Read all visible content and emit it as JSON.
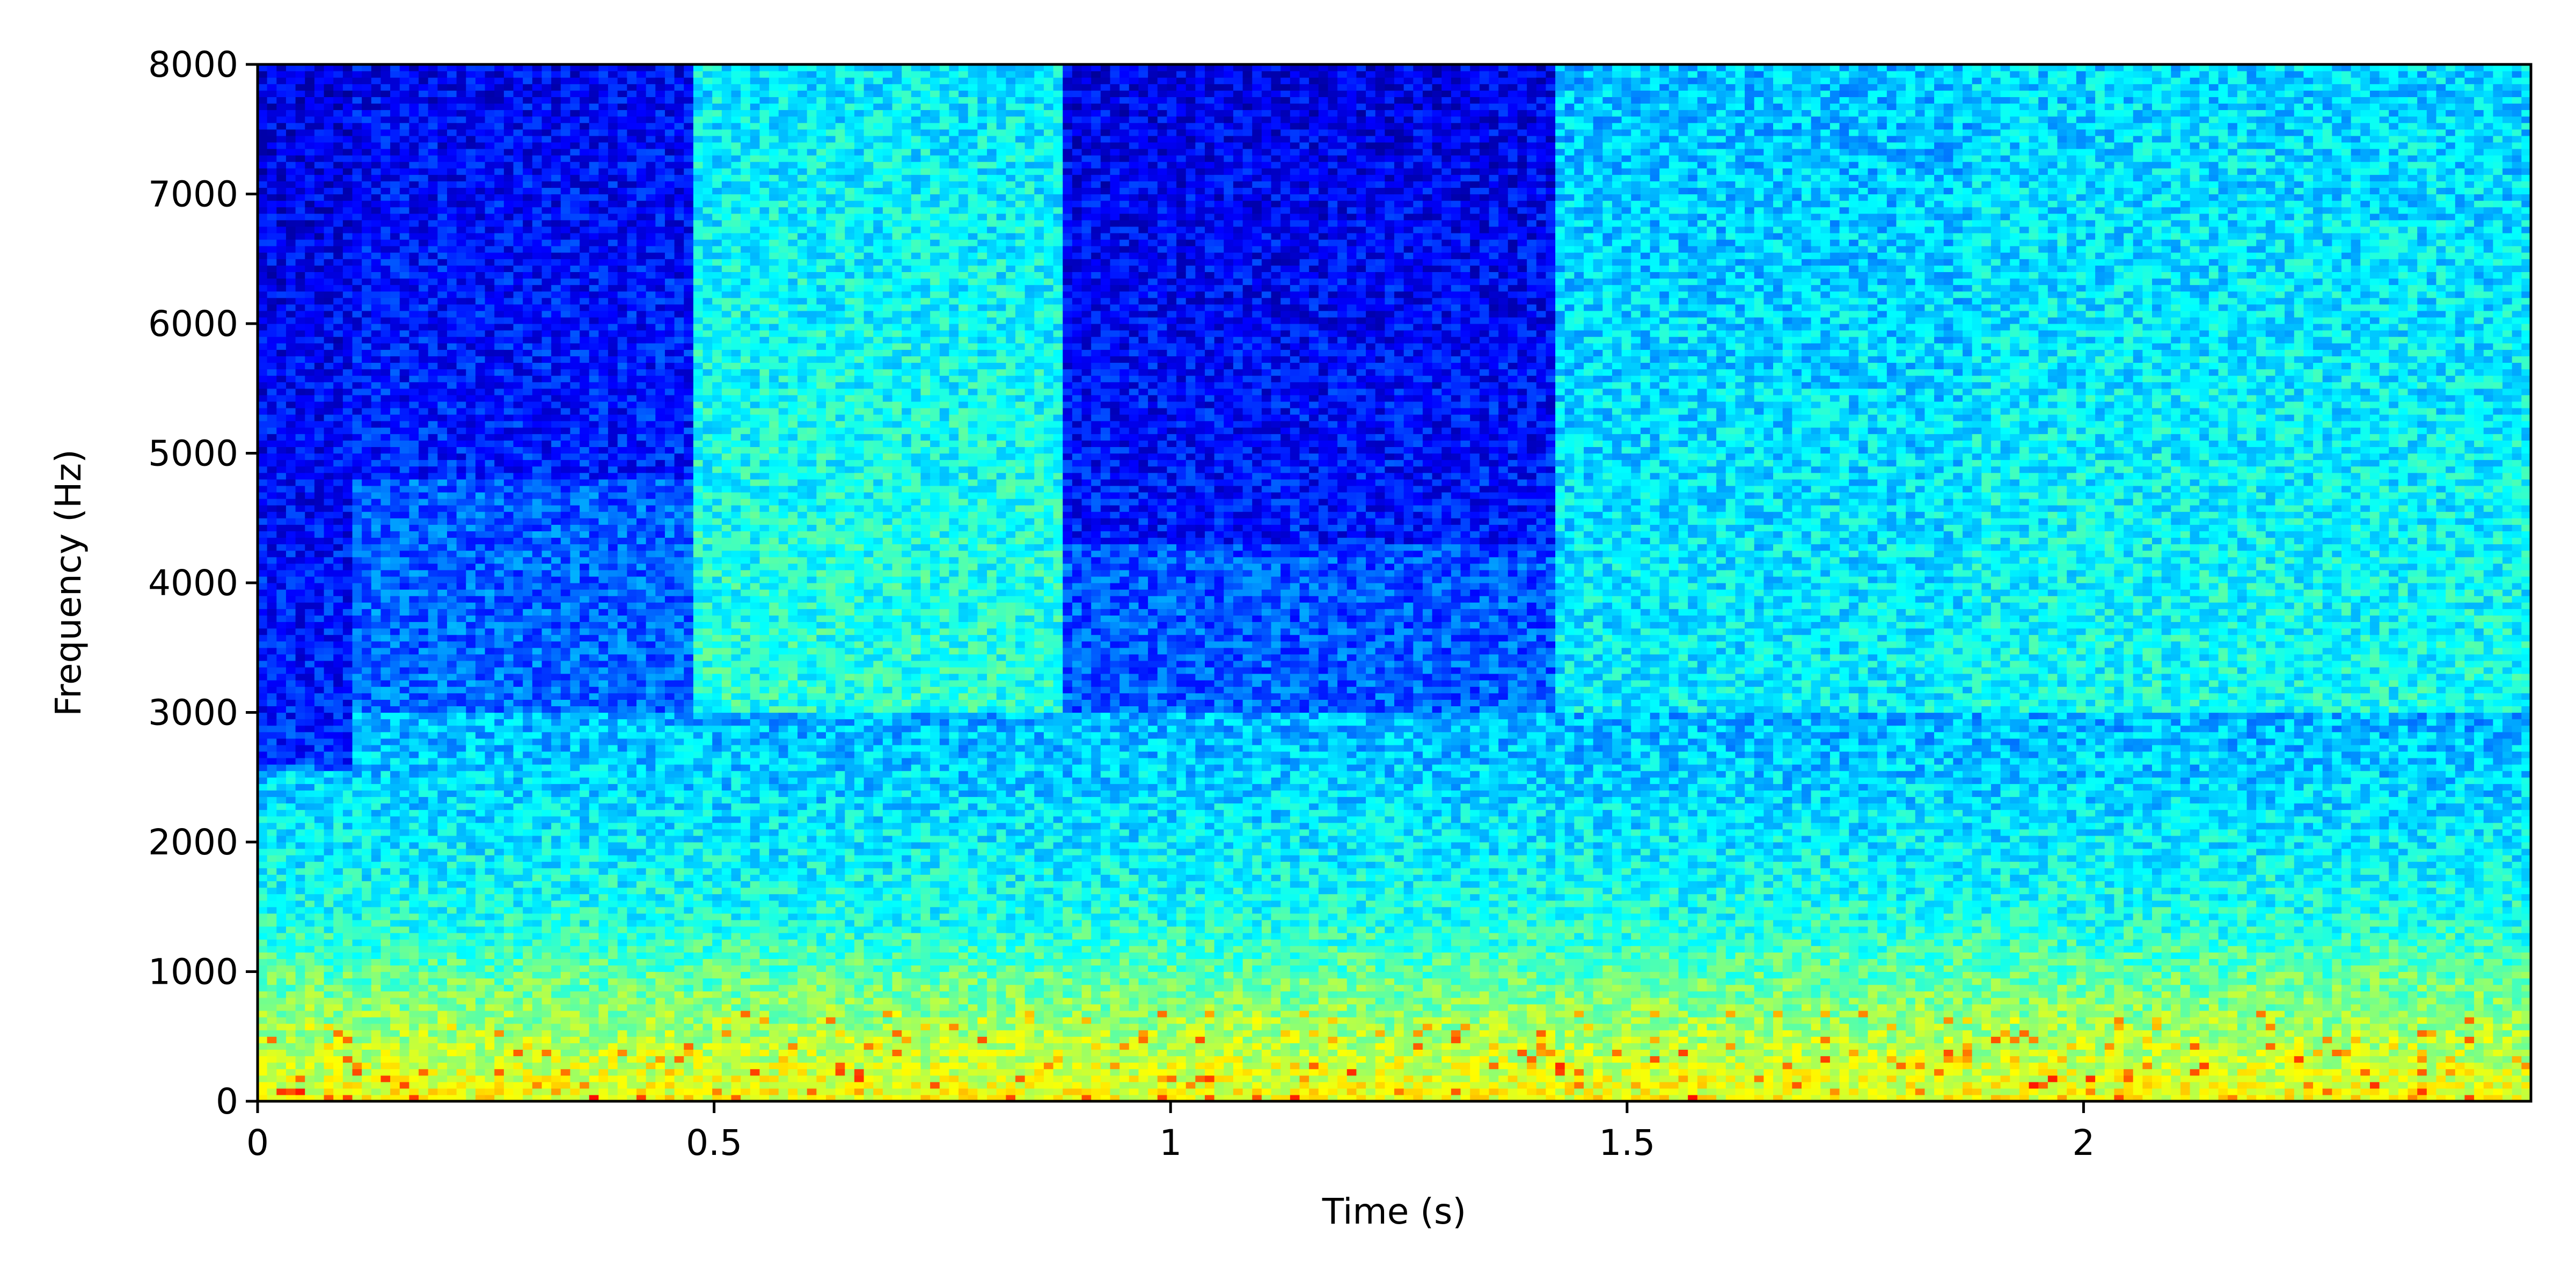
{
  "chart_data": {
    "type": "heatmap",
    "title": "",
    "xlabel": "Time (s)",
    "ylabel": "Frequency (Hz)",
    "xlim": [
      0,
      2.49
    ],
    "ylim": [
      0,
      8000
    ],
    "x_ticks": [
      0,
      0.5,
      1,
      1.5,
      2
    ],
    "x_tick_labels": [
      "0",
      "0.5",
      "1",
      "1.5",
      "2"
    ],
    "y_ticks": [
      0,
      1000,
      2000,
      3000,
      4000,
      5000,
      6000,
      7000,
      8000
    ],
    "y_tick_labels": [
      "0",
      "1000",
      "2000",
      "3000",
      "4000",
      "5000",
      "6000",
      "7000",
      "8000"
    ],
    "colormap": "jet",
    "grid": false,
    "legend": "none",
    "energy_segments": [
      {
        "x": [
          0.0,
          0.1
        ],
        "high_freq_energy": 0.1,
        "low_freq_cutoff_hz": 2600
      },
      {
        "x": [
          0.1,
          0.48
        ],
        "high_freq_energy": 0.15,
        "low_freq_cutoff_hz": 4800
      },
      {
        "x": [
          0.48,
          0.88
        ],
        "high_freq_energy": 0.55,
        "low_freq_cutoff_hz": 8000
      },
      {
        "x": [
          0.88,
          1.42
        ],
        "high_freq_energy": 0.12,
        "low_freq_cutoff_hz": 4300
      },
      {
        "x": [
          1.42,
          1.88
        ],
        "high_freq_energy": 0.45,
        "low_freq_cutoff_hz": 8000
      },
      {
        "x": [
          1.88,
          2.49
        ],
        "high_freq_energy": 0.5,
        "low_freq_cutoff_hz": 8000
      }
    ]
  }
}
